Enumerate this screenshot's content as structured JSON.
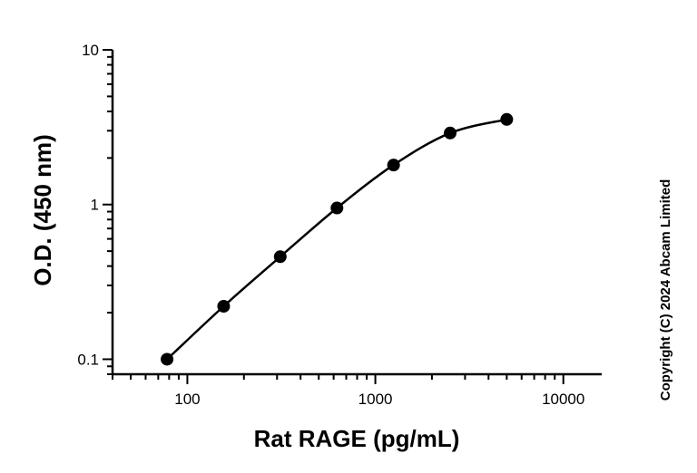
{
  "chart_data": {
    "type": "scatter",
    "title": "",
    "xlabel": "Rat RAGE (pg/mL)",
    "ylabel": "O.D. (450 nm)",
    "x_scale": "log",
    "y_scale": "log",
    "xlim": [
      40,
      16000
    ],
    "ylim": [
      0.08,
      10
    ],
    "x_ticks": [
      {
        "value": 100,
        "label": "100"
      },
      {
        "value": 1000,
        "label": "1000"
      },
      {
        "value": 10000,
        "label": "10000"
      }
    ],
    "y_ticks": [
      {
        "value": 0.1,
        "label": "0.1"
      },
      {
        "value": 1,
        "label": "1"
      },
      {
        "value": 10,
        "label": "10"
      }
    ],
    "grid": false,
    "legend": "none",
    "series": [
      {
        "x": [
          78,
          156,
          312,
          625,
          1250,
          2500,
          5000
        ],
        "y": [
          0.1,
          0.22,
          0.46,
          0.95,
          1.8,
          2.9,
          3.55
        ],
        "marker": "circle",
        "color": "#000000",
        "fit_curve": true
      }
    ]
  },
  "copyright": "Copyright (C) 2024 Abcam Limited"
}
